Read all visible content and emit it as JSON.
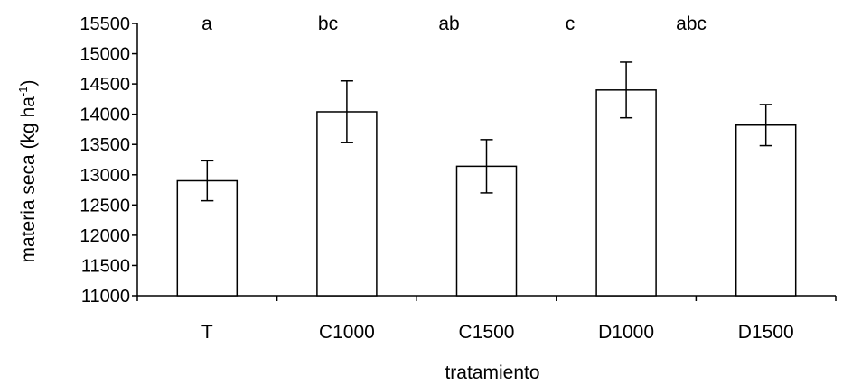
{
  "chart_data": {
    "type": "bar",
    "categories": [
      "T",
      "C1000",
      "C1500",
      "D1000",
      "D1500"
    ],
    "values": [
      12900,
      14040,
      13140,
      14400,
      13820
    ],
    "error": [
      330,
      510,
      440,
      460,
      340
    ],
    "significance_letters": [
      "a",
      "bc",
      "ab",
      "c",
      "abc"
    ],
    "xlabel": "tratamiento",
    "ylabel": "materia seca (kg ha-1)",
    "ylabel_parts": {
      "main": "materia seca (kg ha",
      "superscript": "-1",
      "close": ")"
    },
    "ylim": [
      11000,
      15500
    ],
    "yticks": [
      11000,
      11500,
      12000,
      12500,
      13000,
      13500,
      14000,
      14500,
      15000,
      15500
    ],
    "bar_fill": "#ffffff",
    "bar_stroke": "#000000",
    "grid": false,
    "legend": "none"
  }
}
